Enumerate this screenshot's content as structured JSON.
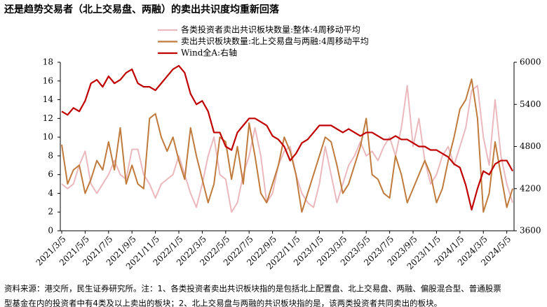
{
  "chart_data": {
    "type": "line",
    "title": "还是趋势交易者（北上交易盘、两融）的卖出共识度均重新回落",
    "footnote": [
      "资料来源：港交所，民生证券研究所。注：1、各类投资者卖出共识板块指的是包括北上配置盘、北上交易盘、两融、偏股混合型、普通股票",
      "型基金在内的投资者中有4类及以上卖出的板块；2、北上交易盘与两融的共识板块指的是，该两类投资者共同卖出的板块。"
    ],
    "categories": [
      "2021/3/5",
      null,
      null,
      null,
      "2021/5/5",
      null,
      null,
      null,
      "2021/7/5",
      null,
      null,
      null,
      "2021/9/5",
      null,
      null,
      null,
      "2021/11/5",
      null,
      null,
      null,
      "2022/1/5",
      null,
      null,
      null,
      "2022/3/5",
      null,
      null,
      null,
      "2022/5/5",
      null,
      null,
      null,
      "2022/7/5",
      null,
      null,
      null,
      "2022/9/5",
      null,
      null,
      null,
      "2022/11/5",
      null,
      null,
      null,
      "2023/1/5",
      null,
      null,
      null,
      "2023/3/5",
      null,
      null,
      null,
      "2023/5/5",
      null,
      null,
      null,
      "2023/7/5",
      null,
      null,
      null,
      "2023/9/5",
      null,
      null,
      null,
      "2023/11/5",
      null,
      null,
      null,
      "2024/1/5",
      null,
      null,
      null,
      "2024/3/5",
      null,
      null,
      null,
      "2024/5/5",
      null
    ],
    "series": [
      {
        "name": "各类投资者卖出共识板块数量:整体:4周移动平均",
        "color": "#ebb9bd",
        "values": [
          5,
          4.5,
          5,
          7,
          8.5,
          5,
          4,
          5,
          6,
          7.5,
          6,
          5.5,
          8.7,
          8.7,
          6,
          5,
          3.5,
          5,
          5.5,
          6,
          8,
          6,
          4,
          2.5,
          5,
          8,
          10,
          6,
          5.5,
          2,
          3,
          6,
          8,
          11,
          8,
          3,
          4,
          7,
          8.5,
          9,
          6,
          4,
          3,
          2.5,
          5,
          9,
          6,
          3,
          5,
          7,
          8,
          9.5,
          8,
          8.5,
          7.5,
          9,
          10,
          8,
          11,
          15.5,
          9,
          12,
          7.5,
          5,
          6,
          8,
          9,
          7,
          9,
          11,
          15,
          15.5,
          10,
          7,
          14,
          8,
          5,
          3
        ]
      },
      {
        "name": "卖出共识板块数量:北上交易盘与两融:4周移动平均",
        "color": "#c07a3c",
        "values": [
          9.2,
          5,
          6.5,
          7,
          4,
          5.5,
          7.5,
          6.5,
          9.5,
          6.5,
          11,
          5,
          7,
          5,
          4.5,
          12,
          12.5,
          10,
          8.5,
          10,
          7.5,
          5.5,
          11,
          8,
          5.5,
          3,
          5,
          10,
          9.5,
          5.5,
          9,
          5,
          11.5,
          8,
          4,
          3,
          5,
          7,
          10,
          8.5,
          6,
          2,
          4,
          6,
          8,
          10,
          9.5,
          7,
          4,
          5,
          7,
          9,
          12,
          6,
          5.5,
          4,
          3.5,
          8,
          6,
          3,
          4.5,
          6,
          7.5,
          6,
          3,
          4.5,
          7.5,
          10,
          13,
          14,
          16.2,
          12,
          2,
          4,
          9.5,
          6,
          2.5,
          4.5
        ]
      },
      {
        "name": "Wind全A:右轴",
        "color": "#c00000",
        "axis": "y2",
        "values": [
          5300,
          5250,
          5350,
          5300,
          5450,
          5700,
          5750,
          5650,
          5800,
          5700,
          5750,
          5850,
          5900,
          5700,
          5650,
          5650,
          5600,
          5700,
          5800,
          5900,
          5950,
          5850,
          5550,
          5400,
          5450,
          5300,
          5000,
          5000,
          4800,
          4750,
          5000,
          5100,
          5200,
          5200,
          5150,
          5100,
          4950,
          4900,
          4800,
          4600,
          4700,
          4850,
          4900,
          5000,
          5100,
          5100,
          5100,
          5050,
          5000,
          5050,
          5000,
          4950,
          5000,
          5000,
          4950,
          4900,
          4900,
          4950,
          4900,
          4900,
          4850,
          4800,
          4800,
          4750,
          4750,
          4700,
          4650,
          4550,
          4500,
          4250,
          3900,
          4200,
          4450,
          4400,
          4550,
          4600,
          4600,
          4450
        ]
      }
    ],
    "ylim": [
      0,
      18
    ],
    "yticks": [
      0,
      2,
      4,
      6,
      8,
      10,
      12,
      14,
      16,
      18
    ],
    "y2lim": [
      3600,
      6000
    ],
    "y2ticks": [
      3600,
      4200,
      4800,
      5400,
      6000
    ],
    "legend": "upper-left"
  }
}
